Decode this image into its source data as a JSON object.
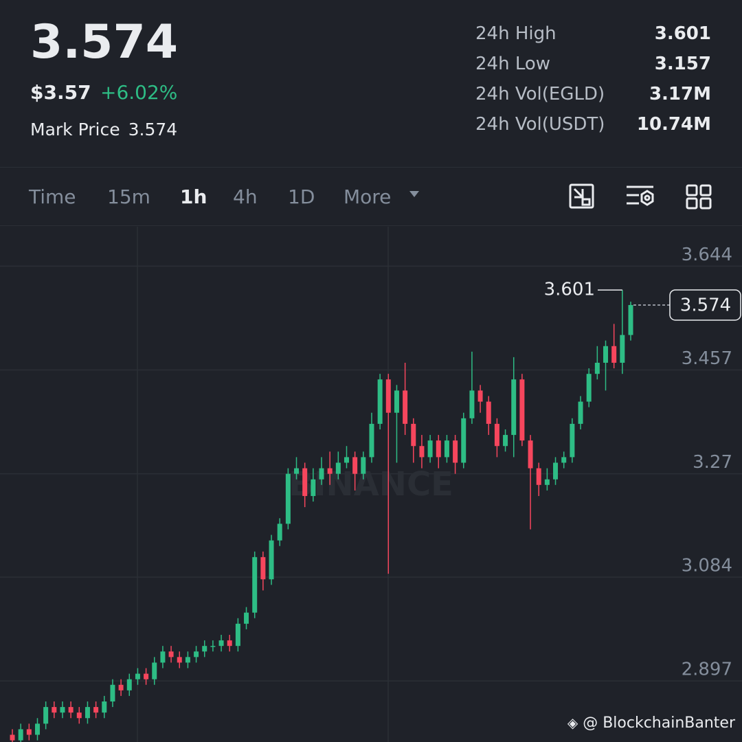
{
  "header": {
    "price": "3.574",
    "usd_price": "$3.57",
    "change": "+6.02%",
    "mark_price_label": "Mark Price",
    "mark_price": "3.574"
  },
  "stats": [
    {
      "label": "24h High",
      "value": "3.601"
    },
    {
      "label": "24h Low",
      "value": "3.157"
    },
    {
      "label": "24h Vol(EGLD)",
      "value": "3.17M"
    },
    {
      "label": "24h Vol(USDT)",
      "value": "10.74M"
    }
  ],
  "tabs": [
    "Time",
    "15m",
    "1h",
    "4h",
    "1D",
    "More"
  ],
  "footer": "@ BlockchainBanter",
  "chart_data": {
    "type": "candlestick",
    "watermark": "BINANCE",
    "high_label": "3.601",
    "last_label": "3.574",
    "up_color": "#2ebd85",
    "down_color": "#f6465d",
    "grid": true,
    "ylim": [
      2.787,
      3.715
    ],
    "yticks": [
      3.644,
      3.457,
      3.27,
      3.084,
      2.897
    ],
    "open": [
      2.8,
      2.79,
      2.81,
      2.8,
      2.82,
      2.85,
      2.84,
      2.85,
      2.84,
      2.83,
      2.85,
      2.84,
      2.86,
      2.89,
      2.88,
      2.9,
      2.91,
      2.9,
      2.93,
      2.95,
      2.94,
      2.93,
      2.94,
      2.95,
      2.96,
      2.96,
      2.97,
      2.96,
      3.0,
      3.02,
      3.12,
      3.08,
      3.15,
      3.18,
      3.27,
      3.28,
      3.23,
      3.26,
      3.28,
      3.27,
      3.29,
      3.3,
      3.27,
      3.3,
      3.36,
      3.44,
      3.38,
      3.42,
      3.36,
      3.32,
      3.3,
      3.33,
      3.3,
      3.33,
      3.29,
      3.37,
      3.42,
      3.4,
      3.36,
      3.32,
      3.34,
      3.44,
      3.33,
      3.28,
      3.25,
      3.26,
      3.29,
      3.3,
      3.36,
      3.4,
      3.45,
      3.47,
      3.5,
      3.47,
      3.52
    ],
    "high": [
      2.81,
      2.82,
      2.82,
      2.83,
      2.86,
      2.86,
      2.86,
      2.86,
      2.85,
      2.86,
      2.86,
      2.87,
      2.9,
      2.9,
      2.91,
      2.92,
      2.92,
      2.94,
      2.96,
      2.96,
      2.95,
      2.95,
      2.96,
      2.97,
      2.97,
      2.98,
      2.98,
      3.01,
      3.03,
      3.13,
      3.13,
      3.16,
      3.19,
      3.28,
      3.3,
      3.29,
      3.28,
      3.3,
      3.31,
      3.31,
      3.32,
      3.31,
      3.31,
      3.38,
      3.45,
      3.45,
      3.43,
      3.47,
      3.37,
      3.34,
      3.34,
      3.34,
      3.34,
      3.34,
      3.38,
      3.49,
      3.43,
      3.41,
      3.37,
      3.35,
      3.48,
      3.45,
      3.34,
      3.29,
      3.28,
      3.3,
      3.31,
      3.37,
      3.41,
      3.46,
      3.5,
      3.51,
      3.54,
      3.601,
      3.58
    ],
    "low": [
      2.78,
      2.78,
      2.79,
      2.79,
      2.81,
      2.83,
      2.83,
      2.83,
      2.82,
      2.82,
      2.83,
      2.83,
      2.85,
      2.87,
      2.87,
      2.89,
      2.89,
      2.89,
      2.92,
      2.93,
      2.92,
      2.92,
      2.93,
      2.94,
      2.95,
      2.95,
      2.95,
      2.95,
      2.99,
      3.01,
      3.06,
      3.07,
      3.14,
      3.17,
      3.26,
      3.21,
      3.22,
      3.25,
      3.25,
      3.26,
      3.28,
      3.24,
      3.26,
      3.29,
      3.35,
      3.09,
      3.29,
      3.34,
      3.29,
      3.28,
      3.29,
      3.28,
      3.29,
      3.27,
      3.28,
      3.36,
      3.38,
      3.34,
      3.3,
      3.31,
      3.3,
      3.32,
      3.17,
      3.23,
      3.24,
      3.25,
      3.28,
      3.29,
      3.35,
      3.39,
      3.44,
      3.42,
      3.46,
      3.45,
      3.51
    ],
    "close": [
      2.79,
      2.81,
      2.8,
      2.82,
      2.85,
      2.84,
      2.85,
      2.84,
      2.83,
      2.85,
      2.84,
      2.86,
      2.89,
      2.88,
      2.9,
      2.91,
      2.9,
      2.93,
      2.95,
      2.94,
      2.93,
      2.94,
      2.95,
      2.96,
      2.96,
      2.97,
      2.96,
      3.0,
      3.02,
      3.12,
      3.08,
      3.15,
      3.18,
      3.27,
      3.28,
      3.23,
      3.26,
      3.28,
      3.27,
      3.29,
      3.3,
      3.27,
      3.3,
      3.36,
      3.44,
      3.38,
      3.42,
      3.36,
      3.32,
      3.3,
      3.33,
      3.3,
      3.33,
      3.29,
      3.37,
      3.42,
      3.4,
      3.36,
      3.32,
      3.34,
      3.44,
      3.33,
      3.28,
      3.25,
      3.26,
      3.29,
      3.3,
      3.36,
      3.4,
      3.45,
      3.47,
      3.5,
      3.47,
      3.52,
      3.574
    ]
  }
}
